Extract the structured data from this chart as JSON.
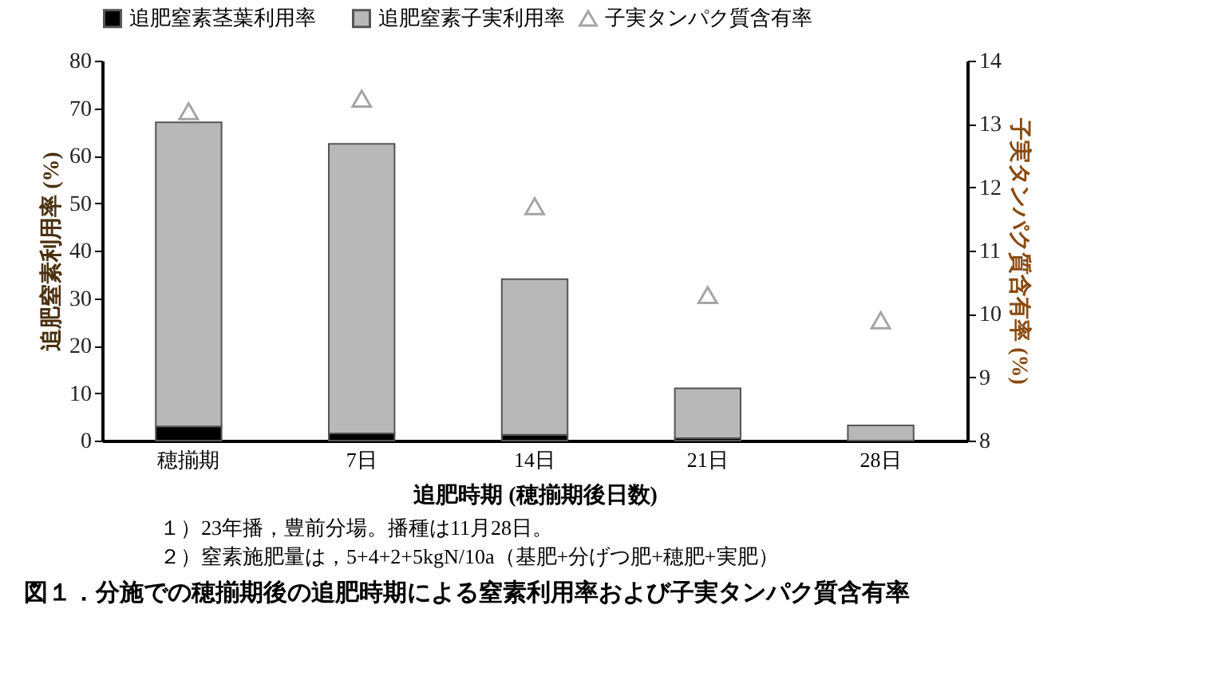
{
  "chart_data": {
    "type": "bar",
    "title": "図１．分施での穂揃期後の追肥時期による窒素利用率および子実タンパク質含有率",
    "xlabel": "追肥時期 (穂揃期後日数)",
    "ylabel": "追肥窒素利用率 (%)",
    "y2label": "子実タンパク質含有率 (%)",
    "categories": [
      "穂揃期",
      "7日",
      "14日",
      "21日",
      "28日"
    ],
    "stacked": true,
    "series": [
      {
        "name": "追肥窒素茎葉利用率",
        "color": "#000000",
        "values": [
          3,
          1.5,
          1.2,
          0.5,
          null
        ]
      },
      {
        "name": "追肥窒素子実利用率",
        "color": "#b8b8b8",
        "values": [
          64,
          61,
          32.8,
          10.5,
          3.2
        ]
      },
      {
        "name": "子実タンパク質含有率",
        "type": "scatter",
        "axis": "y2",
        "color": "#808080",
        "marker": "triangle",
        "values": [
          13.2,
          13.4,
          11.7,
          10.3,
          9.9
        ]
      }
    ],
    "ylim": [
      0,
      80
    ],
    "yticks": [
      0,
      10,
      20,
      30,
      40,
      50,
      60,
      70,
      80
    ],
    "y2lim": [
      8,
      14
    ],
    "y2ticks": [
      8,
      9,
      10,
      11,
      12,
      13,
      14
    ],
    "legend": "top",
    "annotations": [
      "１）23年播，豊前分場。播種は11月28日。",
      "２）窒素施肥量は，5+4+2+5kgN/10a（基肥+分げつ肥+穂肥+実肥）"
    ]
  }
}
